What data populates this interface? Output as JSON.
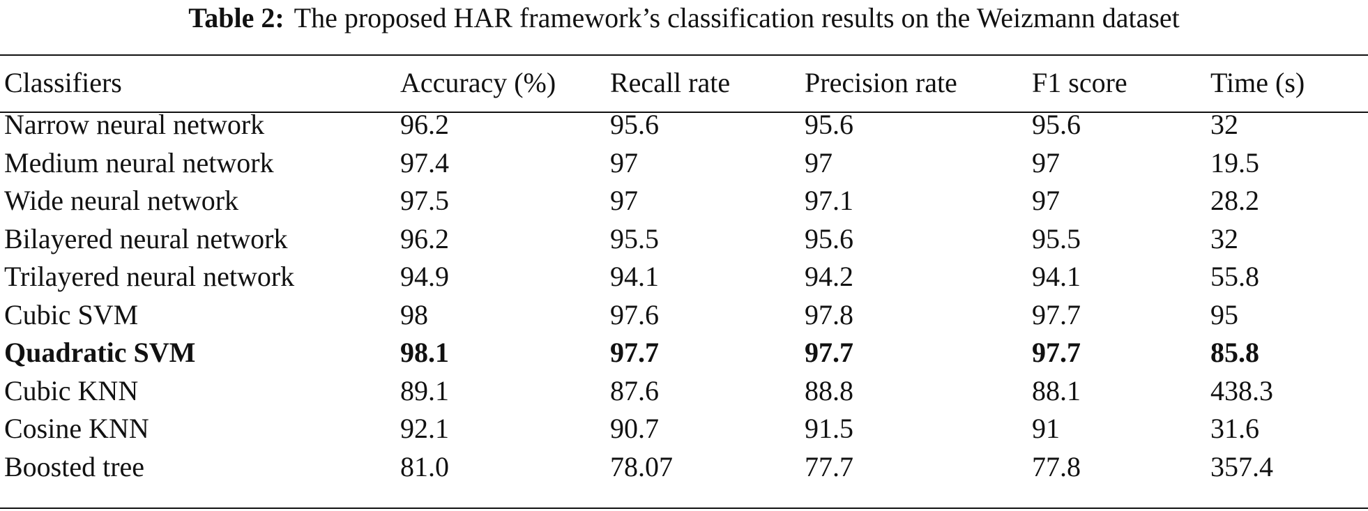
{
  "caption": {
    "label": "Table 2:",
    "text": "The proposed HAR framework’s classification results on the Weizmann dataset"
  },
  "table": {
    "headers": [
      "Classifiers",
      "Accuracy (%)",
      "Recall rate",
      "Precision rate",
      "F1 score",
      "Time (s)"
    ],
    "rows": [
      {
        "cells": [
          "Narrow neural network",
          "96.2",
          "95.6",
          "95.6",
          "95.6",
          "32"
        ],
        "bold": false
      },
      {
        "cells": [
          "Medium neural network",
          "97.4",
          "97",
          "97",
          "97",
          "19.5"
        ],
        "bold": false
      },
      {
        "cells": [
          "Wide neural network",
          "97.5",
          "97",
          "97.1",
          "97",
          "28.2"
        ],
        "bold": false
      },
      {
        "cells": [
          "Bilayered neural network",
          "96.2",
          "95.5",
          "95.6",
          "95.5",
          "32"
        ],
        "bold": false
      },
      {
        "cells": [
          "Trilayered neural network",
          "94.9",
          "94.1",
          "94.2",
          "94.1",
          "55.8"
        ],
        "bold": false
      },
      {
        "cells": [
          "Cubic SVM",
          "98",
          "97.6",
          "97.8",
          "97.7",
          "95"
        ],
        "bold": false
      },
      {
        "cells": [
          "Quadratic SVM",
          "98.1",
          "97.7",
          "97.7",
          "97.7",
          "85.8"
        ],
        "bold": true
      },
      {
        "cells": [
          "Cubic KNN",
          "89.1",
          "87.6",
          "88.8",
          "88.1",
          "438.3"
        ],
        "bold": false
      },
      {
        "cells": [
          "Cosine KNN",
          "92.1",
          "90.7",
          "91.5",
          "91",
          "31.6"
        ],
        "bold": false
      },
      {
        "cells": [
          "Boosted tree",
          "81.0",
          "78.07",
          "77.7",
          "77.8",
          "357.4"
        ],
        "bold": false
      }
    ]
  }
}
